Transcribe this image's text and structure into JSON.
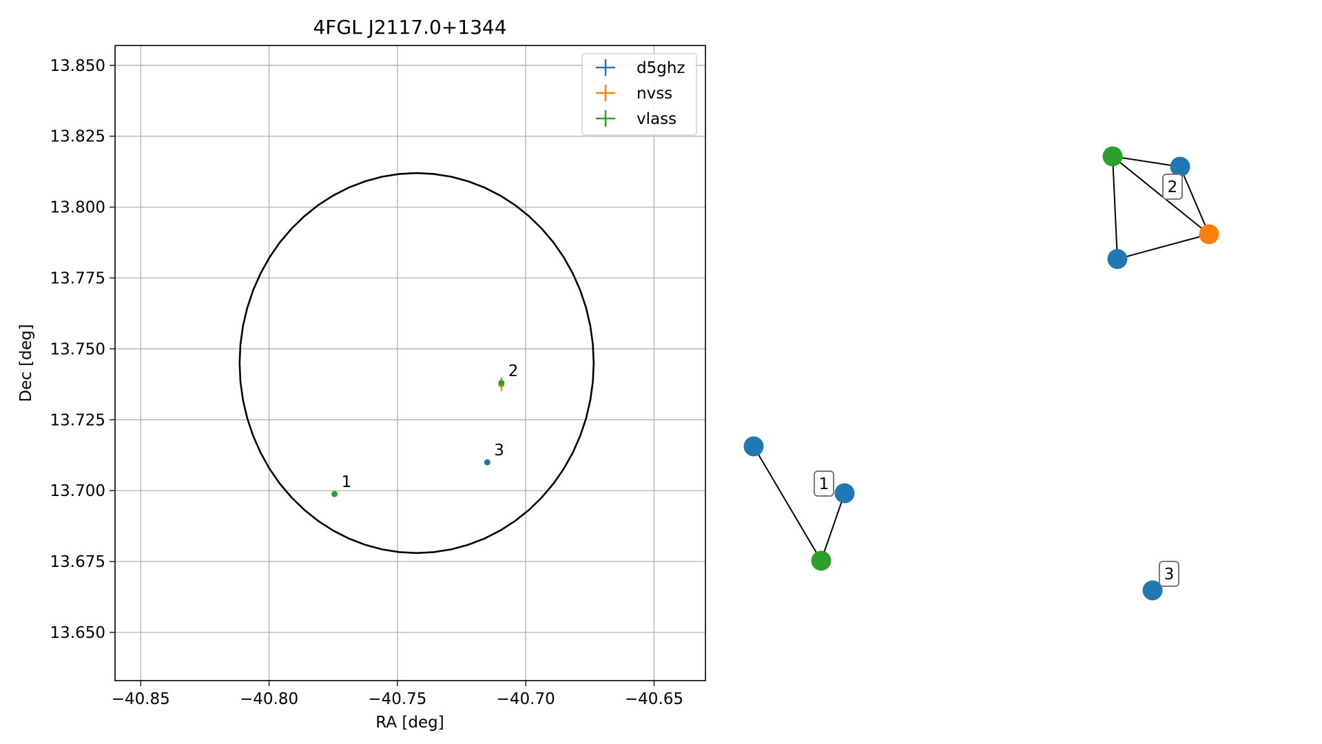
{
  "colors": {
    "d5ghz": "#1f77b4",
    "nvss": "#ff7f0e",
    "vlass": "#2ca02c",
    "grid": "#b0b0b0",
    "circle": "#000000"
  },
  "chart_data": [
    {
      "type": "scatter",
      "title": "4FGL J2117.0+1344",
      "xlabel": "RA [deg]",
      "ylabel": "Dec [deg]",
      "xlim": [
        -40.86,
        -40.63
      ],
      "ylim": [
        13.633,
        13.857
      ],
      "xticks": [
        -40.85,
        -40.8,
        -40.75,
        -40.7,
        -40.65
      ],
      "xtick_labels": [
        "−40.85",
        "−40.80",
        "−40.75",
        "−40.70",
        "−40.65"
      ],
      "yticks": [
        13.65,
        13.675,
        13.7,
        13.725,
        13.75,
        13.775,
        13.8,
        13.825,
        13.85
      ],
      "ytick_labels": [
        "13.650",
        "13.675",
        "13.700",
        "13.725",
        "13.750",
        "13.775",
        "13.800",
        "13.825",
        "13.850"
      ],
      "grid": true,
      "legend_position": "top-right",
      "legend": [
        "d5ghz",
        "nvss",
        "vlass"
      ],
      "series": [
        {
          "name": "d5ghz",
          "points": [
            {
              "x": -40.715,
              "y": 13.71,
              "xerr": 0.0005,
              "yerr": 0.0005
            }
          ]
        },
        {
          "name": "nvss",
          "points": [
            {
              "x": -40.7095,
              "y": 13.7375,
              "xerr": 0.0012,
              "yerr": 0.0025
            }
          ]
        },
        {
          "name": "vlass",
          "points": [
            {
              "x": -40.7095,
              "y": 13.738,
              "xerr": 0.0005,
              "yerr": 0.0005
            },
            {
              "x": -40.7745,
              "y": 13.6988,
              "xerr": 0.0005,
              "yerr": 0.0005
            }
          ]
        }
      ],
      "circle": {
        "center_ra": -40.7425,
        "center_dec": 13.745,
        "radius": 0.067
      },
      "annotations": [
        {
          "text": "1",
          "x": -40.7745,
          "y": 13.6988
        },
        {
          "text": "2",
          "x": -40.7095,
          "y": 13.738
        },
        {
          "text": "3",
          "x": -40.715,
          "y": 13.71
        }
      ]
    },
    {
      "type": "network",
      "nodes": [
        {
          "id": "a",
          "survey": "d5ghz"
        },
        {
          "id": "b",
          "survey": "d5ghz"
        },
        {
          "id": "c",
          "survey": "vlass"
        },
        {
          "id": "d",
          "survey": "vlass"
        },
        {
          "id": "e",
          "survey": "d5ghz"
        },
        {
          "id": "f",
          "survey": "nvss"
        },
        {
          "id": "g",
          "survey": "d5ghz"
        },
        {
          "id": "h",
          "survey": "d5ghz"
        }
      ],
      "edges": [
        [
          "a",
          "c"
        ],
        [
          "b",
          "c"
        ],
        [
          "d",
          "e"
        ],
        [
          "d",
          "f"
        ],
        [
          "d",
          "g"
        ],
        [
          "e",
          "f"
        ],
        [
          "f",
          "g"
        ]
      ],
      "group_labels": [
        {
          "text": "1",
          "group": [
            "a",
            "b",
            "c"
          ]
        },
        {
          "text": "2",
          "group": [
            "d",
            "e",
            "f",
            "g"
          ]
        },
        {
          "text": "3",
          "group": [
            "h"
          ]
        }
      ]
    }
  ]
}
